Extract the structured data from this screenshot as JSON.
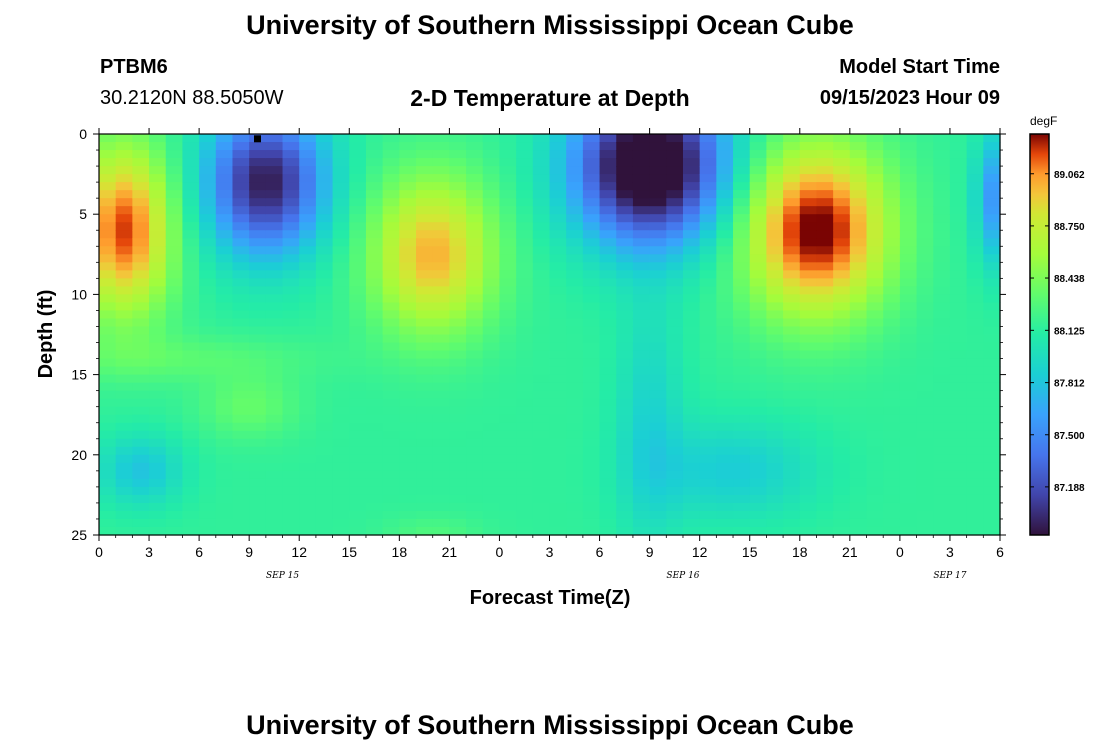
{
  "page": {
    "title_top": "University of Southern Mississippi Ocean Cube",
    "title_bottom": "University of Southern Mississippi Ocean Cube",
    "station": "PTBM6",
    "coords": "30.2120N  88.5050W",
    "model_start_label": "Model Start Time",
    "model_start_value": "09/15/2023 Hour 09"
  },
  "chart_data": {
    "type": "heatmap",
    "title": "2-D Temperature at Depth",
    "xlabel": "Forecast Time(Z)",
    "ylabel": "Depth (ft)",
    "x_range_hours": [
      0,
      54
    ],
    "y_range_ft": [
      0,
      25
    ],
    "x_tick_labels": [
      "0",
      "3",
      "6",
      "9",
      "12",
      "15",
      "18",
      "21",
      "0",
      "3",
      "6",
      "9",
      "12",
      "15",
      "18",
      "21",
      "0",
      "3",
      "6"
    ],
    "y_tick_labels": [
      "0",
      "5",
      "10",
      "15",
      "20",
      "25"
    ],
    "date_labels": [
      {
        "label": "SEP 15",
        "hour": 11
      },
      {
        "label": "SEP 16",
        "hour": 35
      },
      {
        "label": "SEP 17",
        "hour": 51
      }
    ],
    "colorbar": {
      "unit": "degF",
      "min": 86.9,
      "max": 89.3,
      "ticks": [
        "89.062",
        "88.750",
        "88.438",
        "88.125",
        "87.812",
        "87.500",
        "87.188"
      ]
    },
    "marker": {
      "hour": 9.5,
      "depth": 0.3
    },
    "note": "temperature field sampled on hourly x half-foot grid"
  }
}
